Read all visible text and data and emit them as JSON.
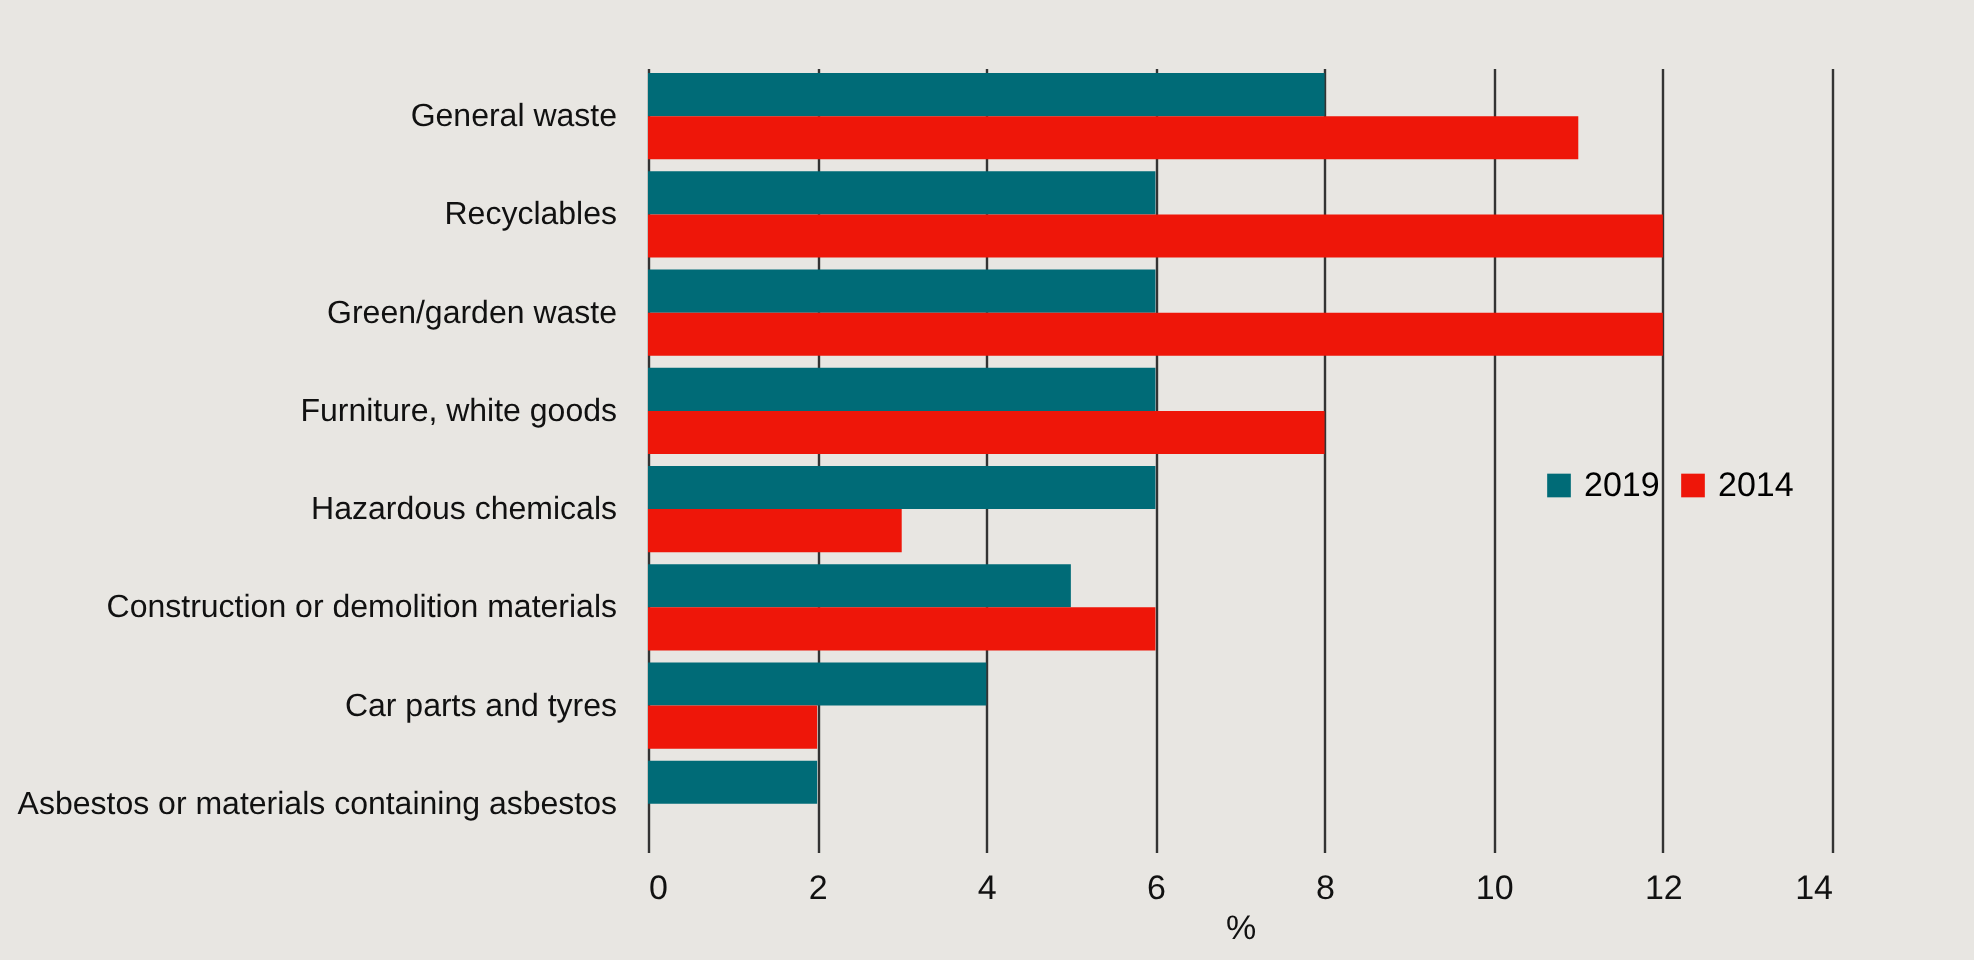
{
  "chart_data": {
    "type": "bar",
    "orientation": "horizontal",
    "xlabel": "%",
    "categories": [
      "General waste",
      "Recyclables",
      "Green/garden waste",
      "Furniture, white goods",
      "Hazardous chemicals",
      "Construction or demolition materials",
      "Car parts and tyres",
      "Asbestos or materials containing asbestos"
    ],
    "series": [
      {
        "name": "2019",
        "color": "#006b77",
        "values": [
          8,
          6,
          6,
          6,
          6,
          5,
          4,
          2
        ]
      },
      {
        "name": "2014",
        "color": "#ee1609",
        "values": [
          11,
          12,
          12,
          8,
          3,
          6,
          2,
          null
        ]
      }
    ],
    "xlim": [
      0,
      14
    ],
    "xticks": [
      0,
      2,
      4,
      6,
      8,
      10,
      12,
      14
    ],
    "grid": "x",
    "legend": "right"
  }
}
